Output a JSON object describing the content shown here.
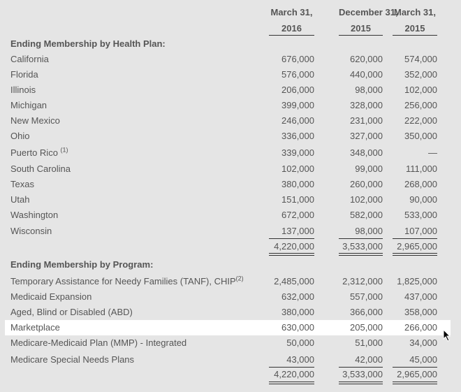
{
  "columns": [
    {
      "line1": "March 31,",
      "line2": "2016"
    },
    {
      "line1": "December 31,",
      "line2": "2015"
    },
    {
      "line1": "March 31,",
      "line2": "2015"
    }
  ],
  "health_plan": {
    "heading": "Ending Membership by Health Plan:",
    "rows": [
      {
        "label": "California",
        "values": [
          "676,000",
          "620,000",
          "574,000"
        ]
      },
      {
        "label": "Florida",
        "values": [
          "576,000",
          "440,000",
          "352,000"
        ]
      },
      {
        "label": "Illinois",
        "values": [
          "206,000",
          "98,000",
          "102,000"
        ]
      },
      {
        "label": "Michigan",
        "values": [
          "399,000",
          "328,000",
          "256,000"
        ]
      },
      {
        "label": "New Mexico",
        "values": [
          "246,000",
          "231,000",
          "222,000"
        ]
      },
      {
        "label": "Ohio",
        "values": [
          "336,000",
          "327,000",
          "350,000"
        ]
      },
      {
        "label": "Puerto Rico",
        "note": "(1)",
        "values": [
          "339,000",
          "348,000",
          "—"
        ]
      },
      {
        "label": "South Carolina",
        "values": [
          "102,000",
          "99,000",
          "111,000"
        ]
      },
      {
        "label": "Texas",
        "values": [
          "380,000",
          "260,000",
          "268,000"
        ]
      },
      {
        "label": "Utah",
        "values": [
          "151,000",
          "102,000",
          "90,000"
        ]
      },
      {
        "label": "Washington",
        "values": [
          "672,000",
          "582,000",
          "533,000"
        ]
      },
      {
        "label": "Wisconsin",
        "values": [
          "137,000",
          "98,000",
          "107,000"
        ]
      }
    ],
    "totals": [
      "4,220,000",
      "3,533,000",
      "2,965,000"
    ]
  },
  "program": {
    "heading": "Ending Membership by Program:",
    "rows": [
      {
        "label": "Temporary Assistance for Needy Families (TANF), CHIP",
        "note": "(2)",
        "values": [
          "2,485,000",
          "2,312,000",
          "1,825,000"
        ]
      },
      {
        "label": "Medicaid Expansion",
        "values": [
          "632,000",
          "557,000",
          "437,000"
        ]
      },
      {
        "label": "Aged, Blind or Disabled (ABD)",
        "values": [
          "380,000",
          "366,000",
          "358,000"
        ]
      },
      {
        "label": "Marketplace",
        "values": [
          "630,000",
          "205,000",
          "266,000"
        ],
        "highlighted": true
      },
      {
        "label": "Medicare-Medicaid Plan (MMP) - Integrated",
        "values": [
          "50,000",
          "51,000",
          "34,000"
        ]
      },
      {
        "label": "Medicare Special Needs Plans",
        "values": [
          "43,000",
          "42,000",
          "45,000"
        ]
      }
    ],
    "totals": [
      "4,220,000",
      "3,533,000",
      "2,965,000"
    ]
  }
}
